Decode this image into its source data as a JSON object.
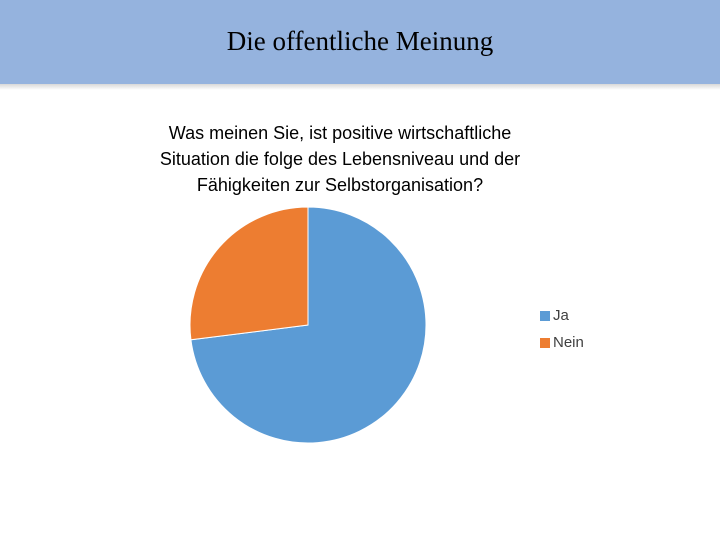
{
  "page": {
    "title": "Die offentliche Meinung"
  },
  "chart_data": {
    "type": "pie",
    "title_lines": [
      "Was meinen Sie, ist positive wirtschaftliche",
      "Situation die folge des Lebensniveau und der",
      "Fähigkeiten zur Selbstorganisation?"
    ],
    "categories": [
      "Ja",
      "Nein"
    ],
    "values": [
      73,
      27
    ],
    "colors": [
      "#5b9bd5",
      "#ed7d31"
    ],
    "start_angle_deg": 0,
    "direction": "clockwise",
    "legend_position": "right"
  },
  "colors": {
    "header_bg": "#95b3de"
  }
}
